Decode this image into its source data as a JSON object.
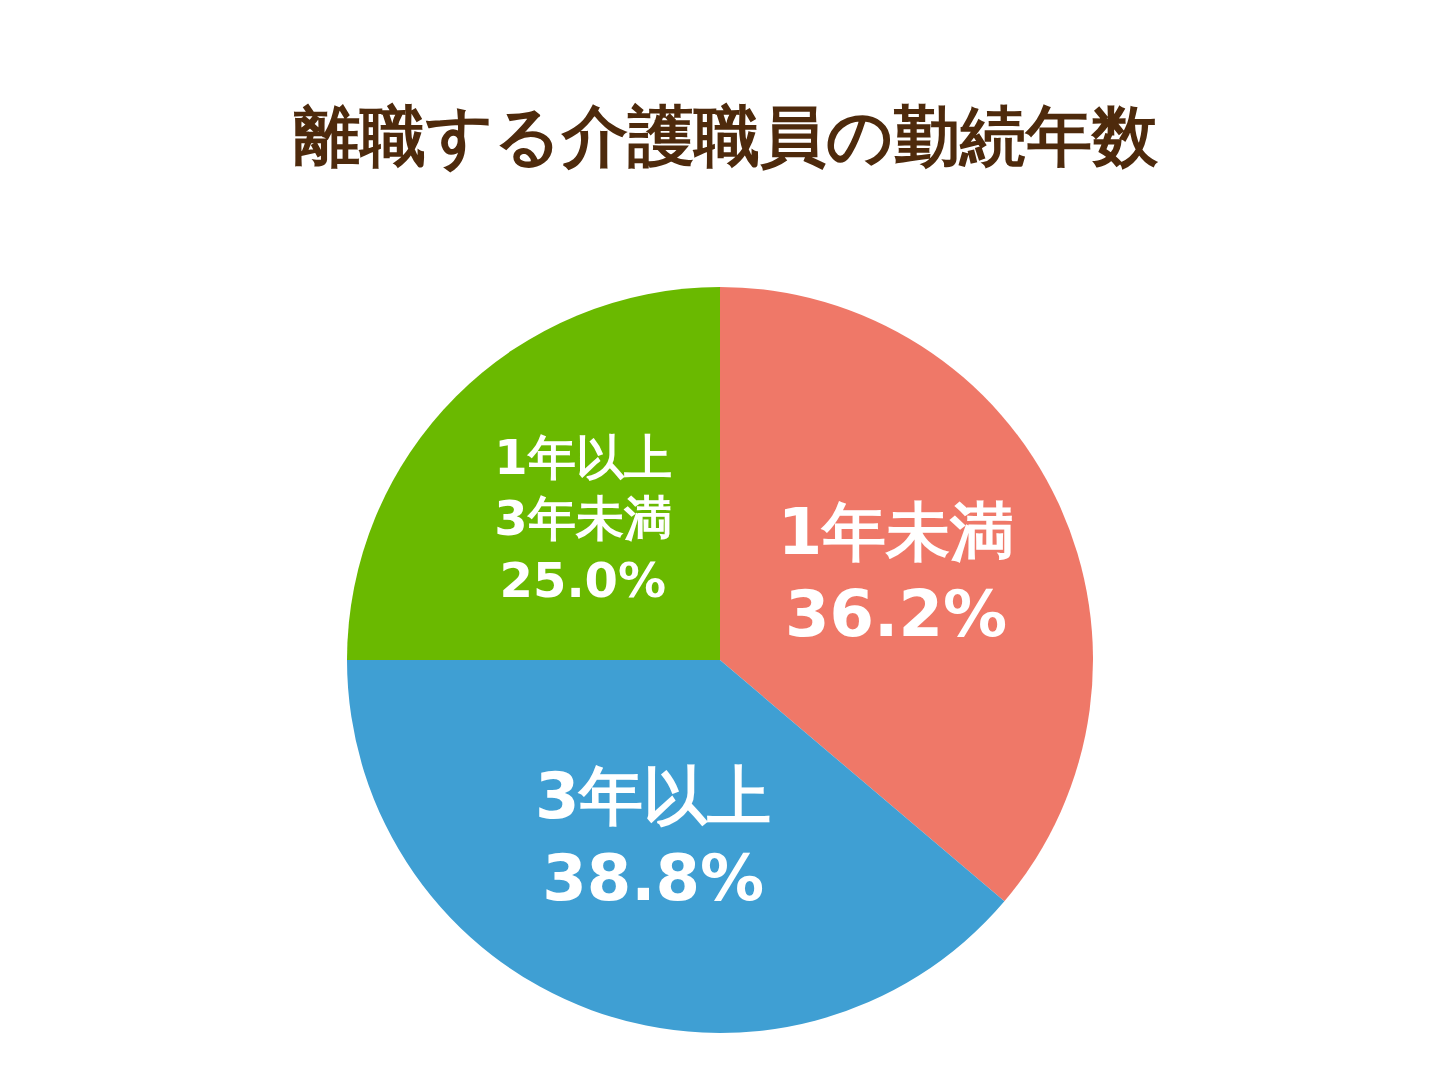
{
  "chart_data": {
    "type": "pie",
    "title": "離職する介護職員の勤続年数",
    "categories": [
      "1年未満",
      "3年以上",
      "1年以上\n3年未満"
    ],
    "values": [
      36.2,
      38.8,
      25.0
    ],
    "colors": [
      "#ef7868",
      "#3f9fd3",
      "#6ab900"
    ],
    "value_labels": [
      "36.2%",
      "38.8%",
      "25.0%"
    ],
    "legend": false
  }
}
